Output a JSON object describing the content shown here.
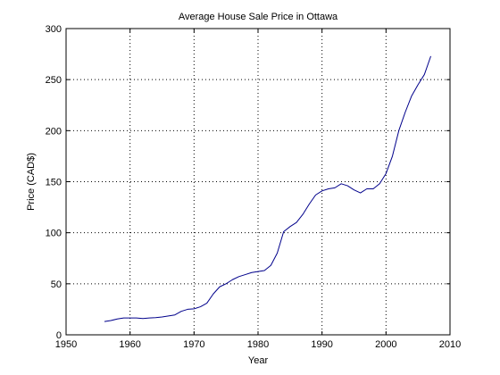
{
  "chart_data": {
    "type": "line",
    "title": "Average House Sale Price in Ottawa",
    "xlabel": "Year",
    "ylabel": "Price (CAD$)",
    "xlim": [
      1950,
      2010
    ],
    "ylim": [
      0,
      300
    ],
    "xticks": [
      "1950",
      "1960",
      "1970",
      "1980",
      "1990",
      "2000",
      "2010"
    ],
    "yticks": [
      "0",
      "50",
      "100",
      "150",
      "200",
      "250",
      "300"
    ],
    "grid": true,
    "grid_style": "dotted",
    "line_color": "#00008b",
    "series": [
      {
        "x": [
          1956,
          1957,
          1958,
          1959,
          1960,
          1961,
          1962,
          1963,
          1964,
          1965,
          1966,
          1967,
          1968,
          1969,
          1970,
          1971,
          1972,
          1973,
          1974,
          1975,
          1976,
          1977,
          1978,
          1979,
          1980,
          1981,
          1982,
          1983,
          1984,
          1985,
          1986,
          1987,
          1988,
          1989,
          1990,
          1991,
          1992,
          1993,
          1994,
          1995,
          1996,
          1997,
          1998,
          1999,
          2000,
          2001,
          2002,
          2003,
          2004,
          2005,
          2006,
          2007
        ],
        "values": [
          13,
          14,
          15.5,
          16.5,
          16.5,
          16.5,
          16,
          16.5,
          16.8,
          17.5,
          18.5,
          19.5,
          23,
          25,
          25.5,
          27.5,
          31,
          40,
          47,
          50,
          54,
          57,
          59,
          61,
          62,
          63,
          68,
          80,
          101,
          106,
          110,
          118,
          128,
          137,
          141,
          143,
          144,
          148,
          146,
          142,
          139,
          143,
          143,
          148,
          158,
          175,
          200,
          218,
          234,
          245,
          255,
          273
        ]
      }
    ]
  }
}
